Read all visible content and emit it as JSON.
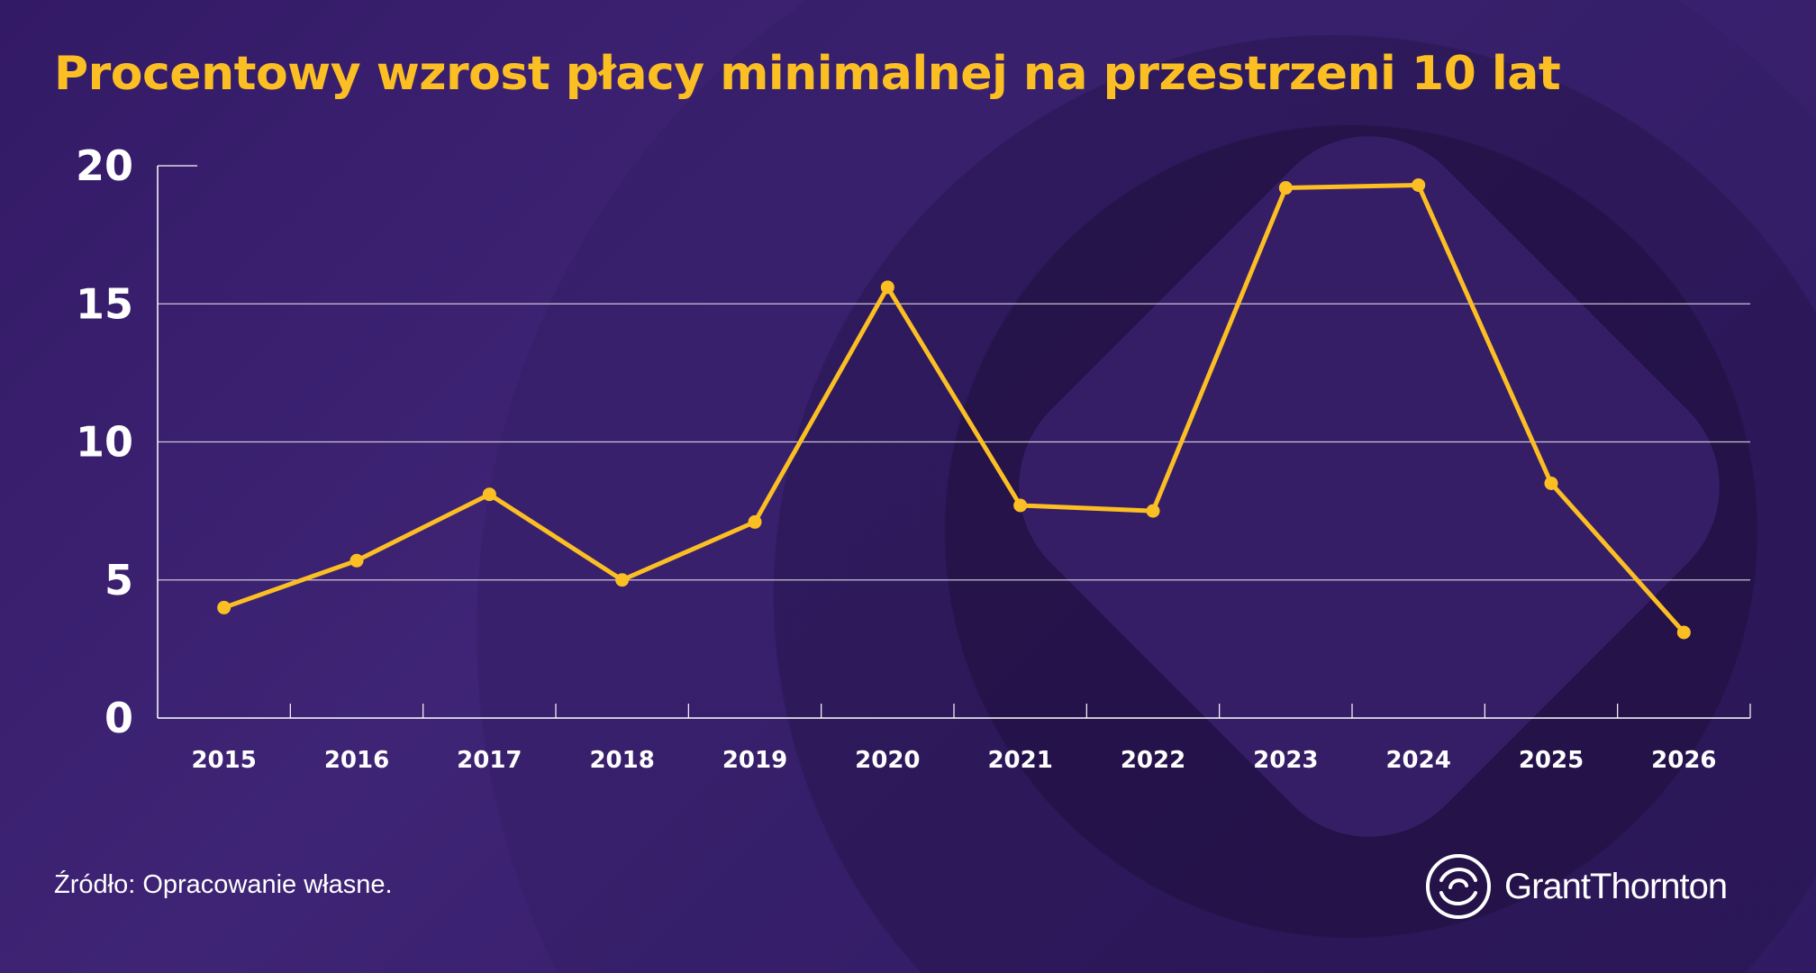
{
  "chart_data": {
    "type": "line",
    "title": "Procentowy wzrost płacy minimalnej na przestrzeni 10 lat",
    "categories": [
      "2015",
      "2016",
      "2017",
      "2018",
      "2019",
      "2020",
      "2021",
      "2022",
      "2023",
      "2024",
      "2025",
      "2026"
    ],
    "series": [
      {
        "values": [
          4.0,
          5.7,
          8.1,
          5.0,
          7.1,
          15.6,
          7.7,
          7.5,
          19.2,
          19.3,
          8.5,
          3.1
        ]
      }
    ],
    "yticks": [
      "0",
      "5",
      "10",
      "15",
      "20"
    ],
    "ylim": [
      0,
      20
    ],
    "grid": true,
    "line_color": "#fbbf24"
  },
  "footer": {
    "source": "Źródło: Opracowanie własne."
  },
  "brand": {
    "name": "GrantThornton",
    "logo_icon": "grant-thornton-swirl-icon"
  },
  "colors": {
    "accent": "#fbbf24",
    "background": "#3a2070",
    "text": "#ffffff"
  }
}
